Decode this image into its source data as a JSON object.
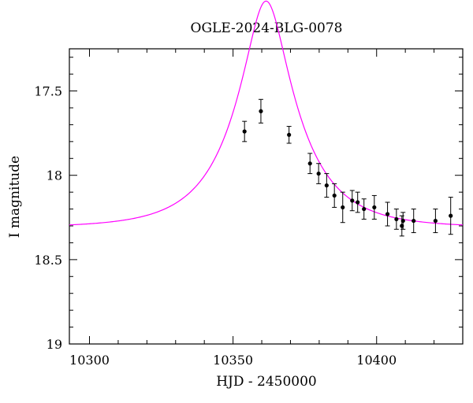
{
  "chart_data": {
    "type": "scatter",
    "title": "OGLE-2024-BLG-0078",
    "xlabel": "HJD - 2450000",
    "ylabel": "I magnitude",
    "xlim": [
      10293,
      10430
    ],
    "ylim": [
      19.0,
      17.25
    ],
    "y_inverted": true,
    "grid": false,
    "x_ticks": [
      10300,
      10350,
      10400
    ],
    "y_ticks": [
      17.5,
      18,
      18.5,
      19
    ],
    "x_tick_labels": [
      "10300",
      "10350",
      "10400"
    ],
    "y_tick_labels": [
      "17.5",
      "18",
      "18.5",
      "19"
    ],
    "colors": {
      "data": "#000000",
      "model": "#ff00ff",
      "frame": "#000000"
    },
    "series": [
      {
        "kind": "points_with_error_bars",
        "points": [
          {
            "x": 10354.0,
            "y": 17.74,
            "err": 0.06
          },
          {
            "x": 10359.7,
            "y": 17.62,
            "err": 0.07
          },
          {
            "x": 10369.5,
            "y": 17.76,
            "err": 0.05
          },
          {
            "x": 10376.8,
            "y": 17.93,
            "err": 0.06
          },
          {
            "x": 10379.8,
            "y": 17.99,
            "err": 0.06
          },
          {
            "x": 10382.6,
            "y": 18.06,
            "err": 0.07
          },
          {
            "x": 10385.3,
            "y": 18.12,
            "err": 0.07
          },
          {
            "x": 10388.2,
            "y": 18.19,
            "err": 0.09
          },
          {
            "x": 10391.5,
            "y": 18.15,
            "err": 0.06
          },
          {
            "x": 10393.4,
            "y": 18.16,
            "err": 0.06
          },
          {
            "x": 10395.6,
            "y": 18.2,
            "err": 0.06
          },
          {
            "x": 10399.2,
            "y": 18.19,
            "err": 0.07
          },
          {
            "x": 10403.8,
            "y": 18.23,
            "err": 0.07
          },
          {
            "x": 10406.9,
            "y": 18.26,
            "err": 0.06
          },
          {
            "x": 10408.8,
            "y": 18.3,
            "err": 0.06
          },
          {
            "x": 10409.2,
            "y": 18.27,
            "err": 0.05
          },
          {
            "x": 10412.9,
            "y": 18.27,
            "err": 0.07
          },
          {
            "x": 10420.5,
            "y": 18.27,
            "err": 0.07
          },
          {
            "x": 10425.8,
            "y": 18.24,
            "err": 0.11
          }
        ]
      },
      {
        "kind": "model_curve",
        "model": "PSPL",
        "t0": 10361.5,
        "u0": 0.3,
        "tE": 22.0,
        "baseline_mag": 18.31
      }
    ]
  }
}
